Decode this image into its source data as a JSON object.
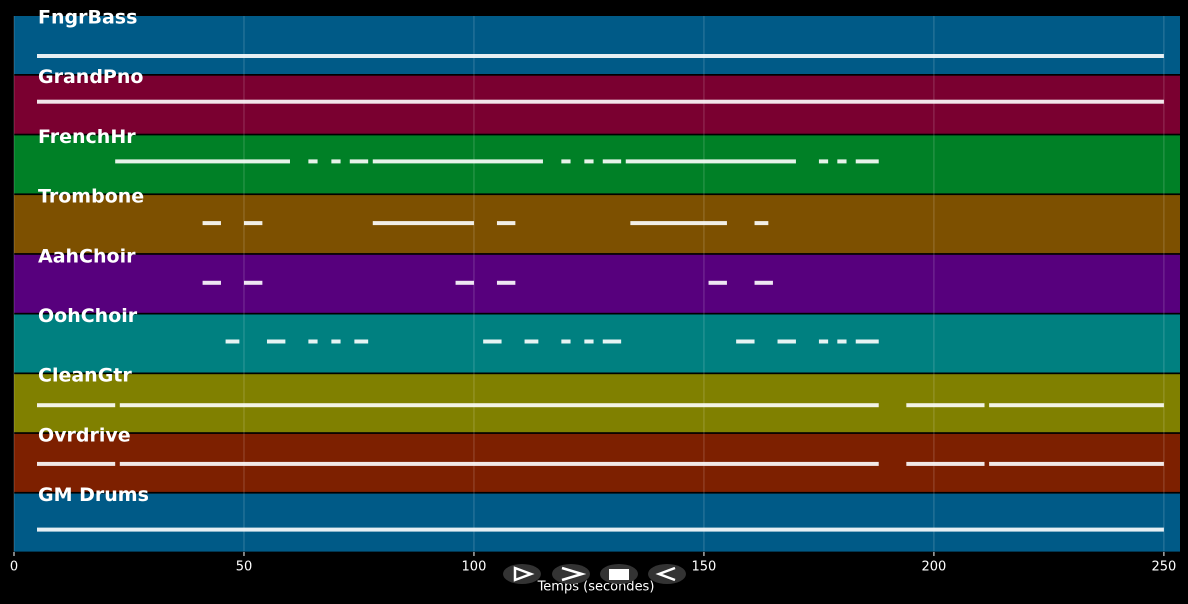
{
  "chart_data": {
    "type": "timeline",
    "x_label": "Temps (secondes)",
    "xlim": [
      0,
      253.5
    ],
    "xticks": [
      0,
      50,
      100,
      150,
      200,
      250
    ],
    "grid": true,
    "series": [
      {
        "name": "FngrBass",
        "color": "#005a87",
        "spans": [
          [
            5,
            250
          ]
        ]
      },
      {
        "name": "GrandPno",
        "color": "#7a0030",
        "spans": [
          [
            5,
            250
          ]
        ]
      },
      {
        "name": "FrenchHr",
        "color": "#008026",
        "spans": [
          [
            22,
            60
          ],
          [
            64,
            66
          ],
          [
            69,
            71
          ],
          [
            73,
            77
          ],
          [
            78,
            115
          ],
          [
            119,
            121
          ],
          [
            124,
            126
          ],
          [
            128,
            132
          ],
          [
            133,
            170
          ],
          [
            175,
            177
          ],
          [
            179,
            181
          ],
          [
            183,
            188
          ]
        ]
      },
      {
        "name": "Trombone",
        "color": "#7d5000",
        "spans": [
          [
            41,
            45
          ],
          [
            50,
            54
          ],
          [
            78,
            100
          ],
          [
            105,
            109
          ],
          [
            134,
            155
          ],
          [
            161,
            164
          ]
        ]
      },
      {
        "name": "AahChoir",
        "color": "#57007d",
        "spans": [
          [
            41,
            45
          ],
          [
            50,
            54
          ],
          [
            96,
            100
          ],
          [
            105,
            109
          ],
          [
            151,
            155
          ],
          [
            161,
            165
          ]
        ]
      },
      {
        "name": "OohChoir",
        "color": "#008080",
        "spans": [
          [
            46,
            49
          ],
          [
            55,
            59
          ],
          [
            64,
            66
          ],
          [
            69,
            71
          ],
          [
            74,
            77
          ],
          [
            102,
            106
          ],
          [
            111,
            114
          ],
          [
            119,
            121
          ],
          [
            124,
            126
          ],
          [
            128,
            132
          ],
          [
            157,
            161
          ],
          [
            166,
            170
          ],
          [
            175,
            177
          ],
          [
            179,
            181
          ],
          [
            183,
            188
          ]
        ]
      },
      {
        "name": "CleanGtr",
        "color": "#808000",
        "spans": [
          [
            5,
            22
          ],
          [
            23,
            188
          ],
          [
            194,
            211
          ],
          [
            212,
            250
          ]
        ]
      },
      {
        "name": "Ovrdrive",
        "color": "#7d2000",
        "spans": [
          [
            5,
            22
          ],
          [
            23,
            188
          ],
          [
            194,
            211
          ],
          [
            212,
            250
          ]
        ]
      },
      {
        "name": "GM Drums",
        "color": "#005a87",
        "spans": [
          [
            5,
            250
          ]
        ]
      }
    ]
  }
}
